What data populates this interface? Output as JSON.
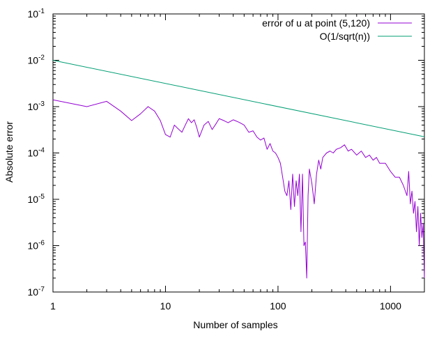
{
  "chart_data": {
    "type": "line",
    "title": "",
    "xlabel": "Number of samples",
    "ylabel": "Absolute error",
    "x_scale": "log",
    "y_scale": "log",
    "xlim": [
      1,
      2000
    ],
    "ylim": [
      1e-07,
      0.1
    ],
    "grid": false,
    "legend_position": "top-right",
    "x_ticks": [
      {
        "value": 1,
        "label": "1"
      },
      {
        "value": 10,
        "label": "10"
      },
      {
        "value": 100,
        "label": "100"
      },
      {
        "value": 1000,
        "label": "1000"
      }
    ],
    "y_ticks": [
      {
        "value": 1e-07,
        "mantissa": "10",
        "exponent": "-7"
      },
      {
        "value": 1e-06,
        "mantissa": "10",
        "exponent": "-6"
      },
      {
        "value": 1e-05,
        "mantissa": "10",
        "exponent": "-5"
      },
      {
        "value": 0.0001,
        "mantissa": "10",
        "exponent": "-4"
      },
      {
        "value": 0.001,
        "mantissa": "10",
        "exponent": "-3"
      },
      {
        "value": 0.01,
        "mantissa": "10",
        "exponent": "-2"
      },
      {
        "value": 0.1,
        "mantissa": "10",
        "exponent": "-1"
      }
    ],
    "series": [
      {
        "name": "error of u  at point (5,120)",
        "color": "#9400d3",
        "x": [
          1,
          2,
          3,
          4,
          5,
          6,
          7,
          8,
          9,
          10,
          11,
          12,
          13,
          14,
          15,
          16,
          17,
          18,
          19,
          20,
          22,
          24,
          26,
          28,
          30,
          33,
          36,
          40,
          45,
          50,
          55,
          60,
          65,
          70,
          75,
          80,
          85,
          90,
          95,
          100,
          105,
          110,
          115,
          120,
          125,
          130,
          135,
          140,
          145,
          150,
          155,
          160,
          165,
          170,
          175,
          180,
          185,
          190,
          200,
          210,
          220,
          230,
          240,
          250,
          270,
          290,
          310,
          330,
          360,
          390,
          420,
          450,
          500,
          550,
          600,
          650,
          700,
          750,
          800,
          900,
          1000,
          1100,
          1200,
          1300,
          1400,
          1450,
          1500,
          1550,
          1600,
          1650,
          1700,
          1750,
          1800,
          1850,
          1900,
          1950,
          2000
        ],
        "y": [
          0.0014,
          0.001,
          0.0013,
          0.0008,
          0.0005,
          0.0007,
          0.001,
          0.0008,
          0.0005,
          0.00025,
          0.00022,
          0.0004,
          0.00033,
          0.00028,
          0.0004,
          0.00055,
          0.00045,
          0.00052,
          0.00035,
          0.00022,
          0.0004,
          0.00048,
          0.00032,
          0.00042,
          0.00055,
          0.0005,
          0.00045,
          0.00052,
          0.00046,
          0.0004,
          0.00028,
          0.0003,
          0.00022,
          0.00019,
          0.00021,
          0.00012,
          0.00016,
          0.00011,
          0.0001,
          8e-05,
          6e-05,
          3e-05,
          1.5e-05,
          1.2e-05,
          2.5e-05,
          6e-06,
          3.5e-05,
          7e-06,
          2.5e-05,
          1.2e-05,
          3.5e-05,
          2e-06,
          3.5e-05,
          1e-06,
          1.2e-06,
          2e-07,
          1.2e-05,
          4.5e-05,
          2.2e-05,
          8e-06,
          3.5e-05,
          7e-05,
          4.5e-05,
          8e-05,
          0.0001,
          0.00011,
          0.0001,
          0.00012,
          0.00013,
          0.00015,
          0.00011,
          0.00012,
          9e-05,
          0.00011,
          8e-05,
          9e-05,
          7e-05,
          8e-05,
          6e-05,
          6e-05,
          4e-05,
          3e-05,
          3e-05,
          2e-05,
          1.2e-05,
          4e-05,
          8e-06,
          1.5e-05,
          5e-06,
          9e-06,
          2e-06,
          7e-06,
          1e-06,
          5e-06,
          1.5e-06,
          3e-06,
          2e-07
        ]
      },
      {
        "name": "O(1/sqrt(n))",
        "color": "#009e73",
        "x": [
          1,
          2000
        ],
        "y": [
          0.01,
          0.000223607
        ]
      }
    ]
  }
}
